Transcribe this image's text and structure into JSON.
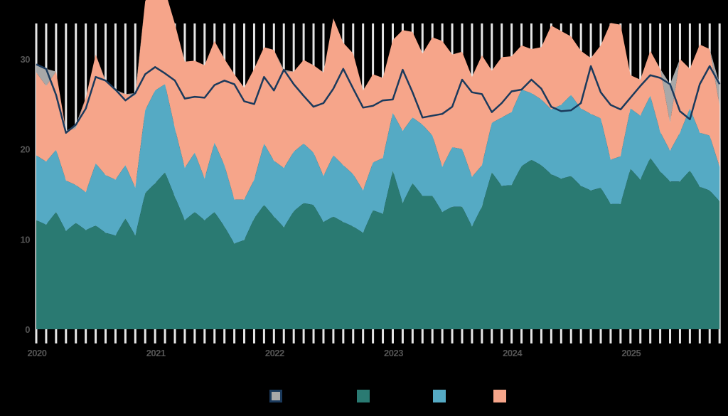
{
  "chart_data": {
    "type": "area",
    "title": "",
    "xlabel": "",
    "ylabel": "",
    "ylim": [
      0,
      34
    ],
    "yticks": [
      0,
      10,
      20,
      30
    ],
    "x_tick_labels": [
      "2020",
      "2021",
      "2022",
      "2023",
      "2024",
      "2025"
    ],
    "x_start": "2020-01",
    "frequency": "monthly",
    "n_points": 70,
    "grid": "vertical monthly white tick lines above plot",
    "legend_position": "bottom",
    "stacked": true,
    "series": [
      {
        "name": "",
        "kind": "stacked-area",
        "color": "#2a7a72",
        "values": [
          12.1,
          11.6,
          13.0,
          10.9,
          11.8,
          11.0,
          11.5,
          10.7,
          10.4,
          12.3,
          10.4,
          15.1,
          16.2,
          17.4,
          14.7,
          12.1,
          13.0,
          12.1,
          13.0,
          11.4,
          9.5,
          9.9,
          12.3,
          13.8,
          12.5,
          11.3,
          13.1,
          14.0,
          13.8,
          11.9,
          12.5,
          11.9,
          11.4,
          10.7,
          13.2,
          12.8,
          17.6,
          14.0,
          16.2,
          14.8,
          14.8,
          13.0,
          13.6,
          13.6,
          11.4,
          13.6,
          17.4,
          15.9,
          16.0,
          18.1,
          18.8,
          18.2,
          17.2,
          16.7,
          17.0,
          15.9,
          15.4,
          15.7,
          13.9,
          13.9,
          17.8,
          16.6,
          19.0,
          17.5,
          16.4,
          16.4,
          17.6,
          15.8,
          15.4,
          14.2
        ]
      },
      {
        "name": "",
        "kind": "stacked-area",
        "color": "#55aac4",
        "values": [
          7.2,
          7.0,
          6.9,
          5.6,
          4.2,
          4.2,
          6.9,
          6.4,
          6.2,
          5.9,
          5.3,
          9.2,
          10.3,
          9.8,
          7.6,
          5.8,
          6.6,
          4.6,
          7.7,
          6.8,
          4.9,
          4.5,
          4.3,
          6.8,
          6.2,
          6.6,
          6.6,
          6.6,
          5.8,
          5.1,
          6.8,
          6.3,
          5.8,
          4.7,
          5.3,
          6.2,
          6.4,
          8.0,
          7.3,
          7.9,
          6.7,
          5.0,
          6.6,
          6.4,
          5.5,
          4.6,
          5.5,
          7.6,
          8.1,
          8.5,
          7.4,
          7.3,
          7.2,
          8.2,
          9.0,
          8.6,
          8.5,
          7.7,
          4.9,
          5.3,
          6.7,
          7.1,
          6.9,
          4.4,
          3.4,
          5.4,
          6.9,
          6.0,
          6.1,
          3.8
        ]
      },
      {
        "name": "",
        "kind": "stacked-area",
        "color": "#f6a58a",
        "values": [
          9.2,
          8.4,
          8.7,
          5.5,
          6.3,
          10.5,
          12.1,
          10.4,
          9.8,
          7.9,
          10.2,
          12.1,
          12.0,
          10.4,
          11.6,
          11.8,
          10.2,
          12.6,
          11.3,
          11.8,
          13.9,
          12.4,
          12.3,
          10.7,
          12.3,
          10.7,
          8.9,
          9.3,
          9.7,
          11.5,
          15.2,
          13.6,
          13.4,
          11.1,
          9.8,
          8.9,
          8.1,
          11.2,
          9.5,
          7.9,
          10.9,
          14.0,
          10.3,
          10.8,
          11.1,
          12.2,
          5.8,
          6.7,
          6.2,
          4.9,
          4.9,
          5.8,
          9.3,
          8.2,
          6.5,
          6.4,
          6.2,
          8.1,
          15.2,
          14.6,
          3.7,
          4.0,
          5.0,
          7.0,
          3.1,
          8.2,
          4.4,
          9.8,
          9.6,
          6.8
        ],
        "note": "approx fill to stack top where visible"
      },
      {
        "name": "",
        "kind": "line",
        "color": "#1b3a5c",
        "values": [
          29.4,
          28.9,
          26.0,
          21.8,
          22.7,
          24.5,
          28.0,
          27.6,
          26.6,
          25.4,
          26.2,
          28.3,
          29.1,
          28.4,
          27.6,
          25.6,
          25.8,
          25.7,
          27.1,
          27.6,
          27.2,
          25.3,
          25.0,
          28.0,
          26.5,
          28.8,
          27.2,
          25.9,
          24.7,
          25.1,
          26.7,
          28.9,
          26.7,
          24.6,
          24.8,
          25.4,
          25.5,
          28.8,
          26.3,
          23.5,
          23.7,
          23.9,
          24.7,
          27.7,
          26.3,
          26.1,
          24.1,
          25.1,
          26.4,
          26.6,
          27.7,
          26.7,
          24.7,
          24.2,
          24.3,
          25.1,
          29.2,
          26.3,
          24.9,
          24.4,
          25.7,
          27.0,
          28.2,
          27.9,
          27.2,
          24.2,
          23.3,
          27.2,
          29.2,
          27.2
        ]
      },
      {
        "name": "",
        "kind": "difference-area",
        "color": "#a8a8a8",
        "description": "gray fill between line and stack top where line exceeds stacked total"
      }
    ]
  },
  "legend": {
    "items": [
      {
        "swatch_color": "#a8a8a8",
        "border_color": "#1b3a5c",
        "label": ""
      },
      {
        "swatch_color": "#2a7a72",
        "label": ""
      },
      {
        "swatch_color": "#55aac4",
        "label": ""
      },
      {
        "swatch_color": "#f6a58a",
        "label": ""
      }
    ]
  },
  "colors": {
    "background": "#000000",
    "tick_lines": "#e6e6e6",
    "tick_text": "#555555"
  }
}
